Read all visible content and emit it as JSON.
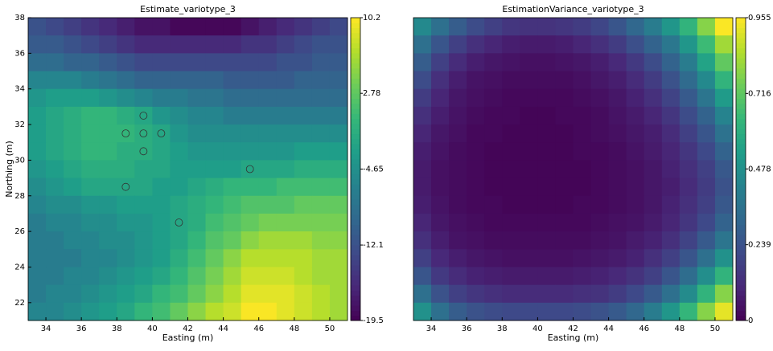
{
  "chart_data": [
    {
      "type": "heatmap",
      "title": "Estimate_variotype_3",
      "x_label": "Easting (m)",
      "y_label": "Northing (m)",
      "colormap": "viridis",
      "xlim": [
        33,
        51
      ],
      "ylim": [
        21,
        38
      ],
      "xticks": [
        34,
        36,
        38,
        40,
        42,
        44,
        46,
        48,
        50
      ],
      "yticks": [
        22,
        24,
        26,
        28,
        30,
        32,
        34,
        36,
        38
      ],
      "clim": [
        -19.5,
        10.2
      ],
      "cticks": [
        -19.5,
        -12.1,
        -4.65,
        2.78,
        10.2
      ],
      "z": [
        [
          -12,
          -13,
          -14,
          -15,
          -16,
          -17,
          -18,
          -18,
          -19,
          -19,
          -19,
          -19,
          -18,
          -17,
          -16,
          -15,
          -14,
          -13
        ],
        [
          -11,
          -11,
          -12,
          -13,
          -14,
          -15,
          -16,
          -16,
          -16,
          -16,
          -16,
          -16,
          -15,
          -15,
          -14,
          -13,
          -12,
          -12
        ],
        [
          -9,
          -9,
          -10,
          -10,
          -11,
          -12,
          -13,
          -13,
          -13,
          -13,
          -13,
          -13,
          -13,
          -13,
          -12,
          -12,
          -11,
          -11
        ],
        [
          -6,
          -6,
          -6,
          -7,
          -8,
          -9,
          -10,
          -10,
          -10,
          -10,
          -10,
          -11,
          -11,
          -11,
          -11,
          -10,
          -10,
          -10
        ],
        [
          -4,
          -3,
          -3,
          -3,
          -4,
          -5,
          -6,
          -7,
          -7,
          -8,
          -8,
          -9,
          -9,
          -9,
          -9,
          -9,
          -9,
          -9
        ],
        [
          -3,
          -2,
          -1,
          0,
          0,
          -1,
          -2,
          -4,
          -5,
          -6,
          -6,
          -7,
          -7,
          -7,
          -7,
          -7,
          -7,
          -7
        ],
        [
          -3,
          -2,
          -1,
          0,
          0,
          0,
          -1,
          -2,
          -4,
          -5,
          -5,
          -5,
          -5,
          -5,
          -5,
          -5,
          -5,
          -5
        ],
        [
          -3,
          -2,
          -1,
          0,
          0,
          -1,
          -1,
          -2,
          -3,
          -4,
          -4,
          -4,
          -4,
          -4,
          -4,
          -3,
          -3,
          -3
        ],
        [
          -4,
          -3,
          -2,
          -1,
          -1,
          -1,
          -2,
          -2,
          -3,
          -3,
          -3,
          -3,
          -2,
          -2,
          -2,
          -1,
          -1,
          -1
        ],
        [
          -5,
          -4,
          -3,
          -2,
          -2,
          -2,
          -2,
          -3,
          -3,
          -2,
          -1,
          0,
          0,
          0,
          1,
          1,
          1,
          1
        ],
        [
          -6,
          -5,
          -5,
          -4,
          -4,
          -3,
          -3,
          -3,
          -2,
          -1,
          0,
          1,
          2,
          2,
          2,
          3,
          3,
          3
        ],
        [
          -7,
          -6,
          -6,
          -5,
          -5,
          -4,
          -4,
          -3,
          -2,
          -1,
          1,
          2,
          3,
          4,
          4,
          4,
          4,
          4
        ],
        [
          -7,
          -7,
          -6,
          -6,
          -5,
          -5,
          -4,
          -3,
          -2,
          0,
          2,
          3,
          5,
          6,
          6,
          6,
          5,
          5
        ],
        [
          -7,
          -7,
          -7,
          -6,
          -6,
          -5,
          -4,
          -3,
          -1,
          1,
          3,
          5,
          7,
          7,
          7,
          7,
          6,
          6
        ],
        [
          -7,
          -7,
          -6,
          -6,
          -5,
          -4,
          -3,
          -2,
          0,
          2,
          4,
          6,
          8,
          8,
          8,
          7,
          6,
          6
        ],
        [
          -7,
          -6,
          -6,
          -5,
          -4,
          -3,
          -2,
          0,
          1,
          3,
          5,
          7,
          9,
          9,
          9,
          8,
          7,
          6
        ],
        [
          -6,
          -6,
          -5,
          -4,
          -3,
          -2,
          0,
          1,
          3,
          5,
          7,
          8,
          10,
          10,
          9,
          8,
          7,
          6
        ]
      ],
      "points": {
        "x": [
          39.5,
          38.5,
          39.5,
          40.5,
          39.5,
          45.5,
          38.5,
          41.5
        ],
        "y": [
          32.5,
          31.5,
          31.5,
          31.5,
          30.5,
          29.5,
          28.5,
          26.5
        ]
      }
    },
    {
      "type": "heatmap",
      "title": "EstimationVariance_variotype_3",
      "x_label": "Easting (m)",
      "colormap": "viridis",
      "xlim": [
        33,
        51
      ],
      "ylim": [
        21,
        38
      ],
      "xticks": [
        34,
        36,
        38,
        40,
        42,
        44,
        46,
        48,
        50
      ],
      "clim": [
        0,
        0.955
      ],
      "cticks": [
        0,
        0.239,
        0.478,
        0.716,
        0.955
      ],
      "z": [
        [
          0.45,
          0.35,
          0.28,
          0.22,
          0.18,
          0.15,
          0.14,
          0.14,
          0.15,
          0.17,
          0.2,
          0.25,
          0.32,
          0.4,
          0.5,
          0.62,
          0.78,
          0.95
        ],
        [
          0.35,
          0.25,
          0.18,
          0.13,
          0.1,
          0.08,
          0.07,
          0.07,
          0.08,
          0.1,
          0.13,
          0.17,
          0.23,
          0.3,
          0.38,
          0.5,
          0.65,
          0.82
        ],
        [
          0.28,
          0.18,
          0.12,
          0.08,
          0.06,
          0.05,
          0.04,
          0.04,
          0.05,
          0.06,
          0.08,
          0.11,
          0.16,
          0.22,
          0.3,
          0.4,
          0.55,
          0.72
        ],
        [
          0.22,
          0.13,
          0.08,
          0.05,
          0.04,
          0.03,
          0.03,
          0.03,
          0.03,
          0.04,
          0.06,
          0.08,
          0.12,
          0.17,
          0.24,
          0.33,
          0.45,
          0.62
        ],
        [
          0.17,
          0.1,
          0.06,
          0.04,
          0.03,
          0.02,
          0.02,
          0.02,
          0.02,
          0.03,
          0.04,
          0.06,
          0.09,
          0.13,
          0.19,
          0.27,
          0.37,
          0.52
        ],
        [
          0.13,
          0.08,
          0.05,
          0.03,
          0.02,
          0.02,
          0.01,
          0.01,
          0.02,
          0.02,
          0.03,
          0.05,
          0.07,
          0.1,
          0.15,
          0.22,
          0.3,
          0.43
        ],
        [
          0.1,
          0.06,
          0.04,
          0.02,
          0.02,
          0.01,
          0.01,
          0.01,
          0.01,
          0.02,
          0.03,
          0.04,
          0.06,
          0.08,
          0.12,
          0.18,
          0.25,
          0.36
        ],
        [
          0.08,
          0.05,
          0.03,
          0.02,
          0.01,
          0.01,
          0.01,
          0.01,
          0.01,
          0.02,
          0.02,
          0.03,
          0.05,
          0.07,
          0.1,
          0.15,
          0.21,
          0.3
        ],
        [
          0.07,
          0.04,
          0.03,
          0.02,
          0.01,
          0.01,
          0.01,
          0.01,
          0.01,
          0.01,
          0.02,
          0.03,
          0.04,
          0.06,
          0.09,
          0.13,
          0.18,
          0.26
        ],
        [
          0.07,
          0.04,
          0.03,
          0.02,
          0.01,
          0.01,
          0.01,
          0.01,
          0.01,
          0.01,
          0.02,
          0.03,
          0.04,
          0.06,
          0.08,
          0.12,
          0.17,
          0.24
        ],
        [
          0.08,
          0.05,
          0.03,
          0.02,
          0.02,
          0.01,
          0.01,
          0.01,
          0.01,
          0.02,
          0.02,
          0.03,
          0.04,
          0.06,
          0.09,
          0.13,
          0.18,
          0.26
        ],
        [
          0.1,
          0.06,
          0.04,
          0.03,
          0.02,
          0.02,
          0.02,
          0.02,
          0.02,
          0.02,
          0.03,
          0.04,
          0.05,
          0.07,
          0.1,
          0.15,
          0.21,
          0.3
        ],
        [
          0.13,
          0.08,
          0.05,
          0.04,
          0.03,
          0.03,
          0.03,
          0.03,
          0.03,
          0.03,
          0.04,
          0.05,
          0.07,
          0.09,
          0.13,
          0.19,
          0.27,
          0.37
        ],
        [
          0.18,
          0.11,
          0.08,
          0.06,
          0.05,
          0.04,
          0.04,
          0.04,
          0.04,
          0.05,
          0.06,
          0.07,
          0.09,
          0.13,
          0.18,
          0.25,
          0.35,
          0.48
        ],
        [
          0.25,
          0.16,
          0.12,
          0.09,
          0.08,
          0.07,
          0.07,
          0.07,
          0.07,
          0.08,
          0.09,
          0.11,
          0.14,
          0.18,
          0.25,
          0.34,
          0.47,
          0.62
        ],
        [
          0.35,
          0.24,
          0.18,
          0.15,
          0.13,
          0.12,
          0.12,
          0.12,
          0.12,
          0.13,
          0.14,
          0.17,
          0.21,
          0.27,
          0.35,
          0.46,
          0.62,
          0.78
        ],
        [
          0.48,
          0.35,
          0.28,
          0.24,
          0.22,
          0.21,
          0.21,
          0.21,
          0.21,
          0.22,
          0.24,
          0.27,
          0.32,
          0.4,
          0.5,
          0.63,
          0.78,
          0.92
        ]
      ]
    }
  ]
}
